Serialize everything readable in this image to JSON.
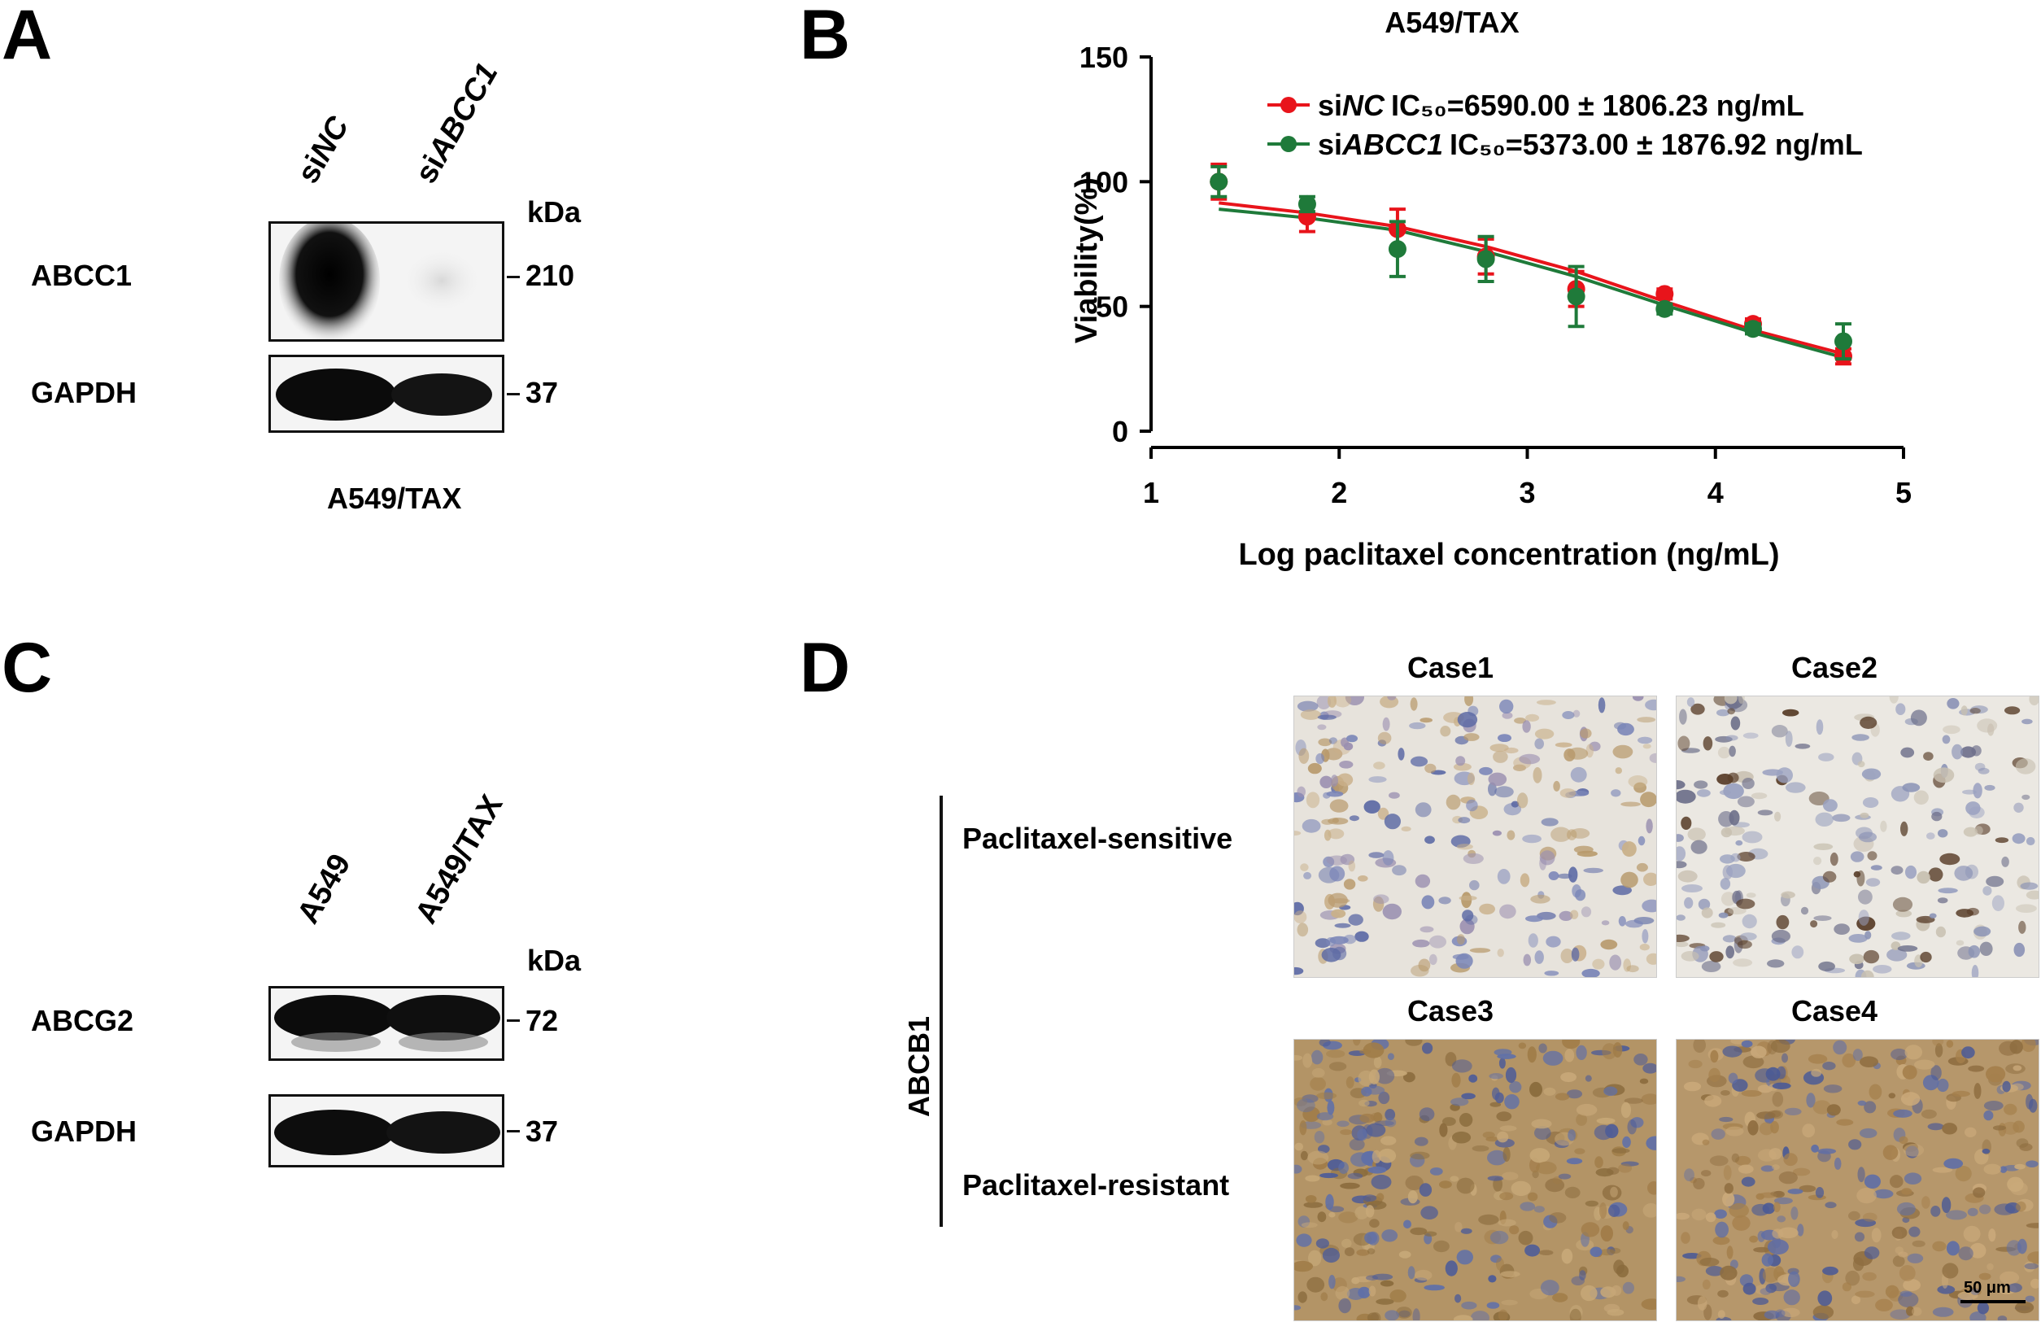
{
  "panels": {
    "A": {
      "letter": "A",
      "lane_prefix": "si",
      "lanes": [
        "NC",
        "ABCC1"
      ],
      "kda_label": "kDa",
      "rows": [
        {
          "protein": "ABCC1",
          "kda": "210"
        },
        {
          "protein": "GAPDH",
          "kda": "37"
        }
      ],
      "cell_line": "A549/TAX"
    },
    "B": {
      "letter": "B",
      "title": "A549/TAX"
    },
    "C": {
      "letter": "C",
      "lanes": [
        "A549",
        "A549/TAX"
      ],
      "kda_label": "kDa",
      "rows": [
        {
          "protein": "ABCG2",
          "kda": "72"
        },
        {
          "protein": "GAPDH",
          "kda": "37"
        }
      ]
    },
    "D": {
      "letter": "D",
      "marker": "ABCB1",
      "groups": [
        "Paclitaxel-sensitive",
        "Paclitaxel-resistant"
      ],
      "cases": [
        "Case1",
        "Case2",
        "Case3",
        "Case4"
      ],
      "scale_bar": "50 μm"
    }
  },
  "chart_data": {
    "type": "line",
    "title": "A549/TAX",
    "xlabel": "Log paclitaxel concentration (ng/mL)",
    "ylabel": "Viability(%)",
    "xlim": [
      1,
      5
    ],
    "ylim": [
      0,
      150
    ],
    "xticks": [
      "1",
      "2",
      "3",
      "4",
      "5"
    ],
    "yticks": [
      "0",
      "50",
      "100",
      "150"
    ],
    "grid": false,
    "legend_position": "top",
    "series": [
      {
        "name": "siNC",
        "legend_prefix": "si",
        "legend_gene": "NC",
        "legend_stat": "IC₅₀=6590.00 ±  1806.23 ng/mL",
        "color": "#e8141b",
        "x": [
          1.36,
          1.83,
          2.31,
          2.78,
          3.26,
          3.73,
          4.2,
          4.68
        ],
        "y": [
          100,
          86,
          81,
          70,
          57,
          55,
          43,
          30
        ],
        "err": [
          7,
          6,
          8,
          7,
          7,
          2,
          2,
          3
        ],
        "fit": [
          [
            1.36,
            91.5
          ],
          [
            1.83,
            87.5
          ],
          [
            2.31,
            82
          ],
          [
            2.78,
            74
          ],
          [
            3.26,
            64
          ],
          [
            3.73,
            52
          ],
          [
            4.2,
            40.5
          ],
          [
            4.68,
            31
          ]
        ]
      },
      {
        "name": "siABCC1",
        "legend_prefix": "si",
        "legend_gene": "ABCC1",
        "legend_stat": "IC₅₀=5373.00 ±  1876.92 ng/mL",
        "color": "#1f7a3a",
        "x": [
          1.36,
          1.83,
          2.31,
          2.78,
          3.26,
          3.73,
          4.2,
          4.68
        ],
        "y": [
          100,
          91,
          73,
          69,
          54,
          49,
          41,
          36
        ],
        "err": [
          6,
          3,
          11,
          9,
          12,
          2,
          2,
          7
        ],
        "fit": [
          [
            1.36,
            89
          ],
          [
            1.83,
            85.5
          ],
          [
            2.31,
            80.5
          ],
          [
            2.78,
            72
          ],
          [
            3.26,
            62
          ],
          [
            3.73,
            50.5
          ],
          [
            4.2,
            39.5
          ],
          [
            4.68,
            29.5
          ]
        ]
      }
    ]
  }
}
